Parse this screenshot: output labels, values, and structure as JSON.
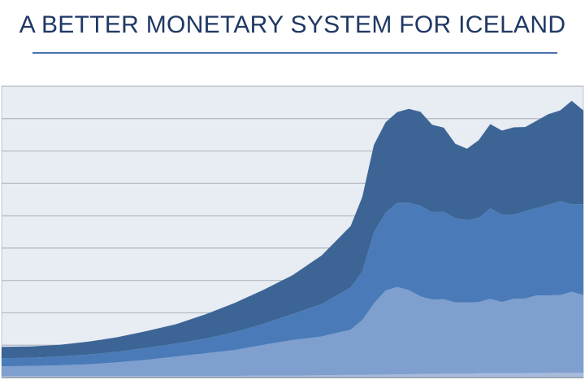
{
  "header": {
    "title": "A BETTER MONETARY SYSTEM FOR ICELAND"
  },
  "colors": {
    "title": "#1f3864",
    "rule": "#4a72b0",
    "plot_background": "#e8ecf3",
    "gridline": "#b3b8c2",
    "series_top": "#3c6596",
    "series_middle": "#4a7bb8",
    "series_lower": "#7f9fce",
    "series_bottom": "#a6bbdc"
  },
  "chart_data": {
    "type": "area",
    "stacked": true,
    "title": "",
    "xlabel": "",
    "ylabel": "",
    "grid": true,
    "legend": "none",
    "ylim": [
      0,
      9
    ],
    "gridlines_y": [
      1,
      2,
      3,
      4,
      5,
      6,
      7,
      8,
      9
    ],
    "x": [
      0,
      5,
      10,
      15,
      20,
      25,
      30,
      35,
      40,
      45,
      50,
      55,
      60,
      62,
      64,
      66,
      68,
      70,
      72,
      74,
      76,
      78,
      80,
      82,
      84,
      86,
      88,
      90,
      92,
      94,
      96,
      98,
      100
    ],
    "series": [
      {
        "values": [
          0.05,
          0.05,
          0.05,
          0.05,
          0.05,
          0.05,
          0.05,
          0.05,
          0.05,
          0.06,
          0.06,
          0.07,
          0.08,
          0.08,
          0.09,
          0.09,
          0.1,
          0.1,
          0.11,
          0.11,
          0.12,
          0.12,
          0.12,
          0.13,
          0.13,
          0.13,
          0.13,
          0.14,
          0.14,
          0.14,
          0.15,
          0.15,
          0.15
        ]
      },
      {
        "values": [
          0.3,
          0.31,
          0.33,
          0.36,
          0.42,
          0.5,
          0.6,
          0.7,
          0.8,
          0.95,
          1.1,
          1.2,
          1.4,
          1.7,
          2.2,
          2.6,
          2.7,
          2.6,
          2.4,
          2.3,
          2.3,
          2.2,
          2.2,
          2.2,
          2.3,
          2.2,
          2.3,
          2.3,
          2.4,
          2.4,
          2.4,
          2.5,
          2.4
        ]
      },
      {
        "values": [
          0.25,
          0.25,
          0.27,
          0.3,
          0.33,
          0.37,
          0.4,
          0.45,
          0.55,
          0.65,
          0.8,
          1.0,
          1.3,
          1.5,
          2.2,
          2.4,
          2.6,
          2.7,
          2.8,
          2.7,
          2.7,
          2.6,
          2.55,
          2.6,
          2.8,
          2.7,
          2.6,
          2.7,
          2.7,
          2.8,
          2.9,
          2.7,
          2.8
        ]
      },
      {
        "values": [
          0.35,
          0.35,
          0.36,
          0.4,
          0.45,
          0.52,
          0.6,
          0.75,
          0.9,
          1.05,
          1.2,
          1.5,
          1.9,
          2.3,
          2.7,
          2.8,
          2.8,
          2.9,
          2.9,
          2.7,
          2.6,
          2.3,
          2.2,
          2.4,
          2.6,
          2.6,
          2.7,
          2.6,
          2.7,
          2.8,
          2.8,
          3.2,
          2.9
        ]
      }
    ]
  }
}
